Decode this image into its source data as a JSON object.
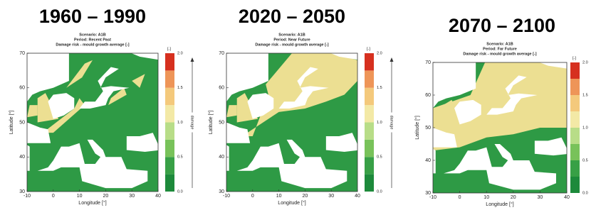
{
  "panels": [
    {
      "title": "1960 – 1990",
      "scenario": "Scenario: A1B",
      "period": "Period: Recent Past",
      "subtitle": "Damage risk - mould growth average [-]",
      "ylabel": "Latitude [°]",
      "xlabel": "Longitude [°]",
      "xticks": [
        "-10",
        "0",
        "10",
        "20",
        "30",
        "40"
      ],
      "yticks": [
        "70",
        "60",
        "50",
        "40",
        "30"
      ],
      "colorbar_unit": "[-]",
      "colorbar_ticks": [
        "2.0",
        "1.5",
        "1.0",
        "0.5",
        "0.0"
      ],
      "arrow_label": "damage"
    },
    {
      "title": "2020 – 2050",
      "scenario": "Scenario: A1B",
      "period": "Period: Near Future",
      "subtitle": "Damage risk - mould growth average [-]",
      "ylabel": "Latitude [°]",
      "xlabel": "Longitude [°]",
      "xticks": [
        "-10",
        "0",
        "10",
        "20",
        "30",
        "40"
      ],
      "yticks": [
        "70",
        "60",
        "50",
        "40",
        "30"
      ],
      "colorbar_unit": "[-]",
      "colorbar_ticks": [
        "2.0",
        "1.5",
        "1.0",
        "0.5",
        "0.0"
      ],
      "arrow_label": "damage"
    },
    {
      "title": "2070 – 2100",
      "scenario": "Scenario: A1B",
      "period": "Period: Far Future",
      "subtitle": "Damage risk - mould growth average [-]",
      "ylabel": "Latitude [°]",
      "xlabel": "Longitude [°]",
      "xticks": [
        "-10",
        "0",
        "10",
        "20",
        "30",
        "40"
      ],
      "yticks": [
        "70",
        "60",
        "50",
        "40",
        "30"
      ],
      "colorbar_unit": "[-]",
      "colorbar_ticks": [
        "2.0",
        "1.5",
        "1.0",
        "0.5",
        "0.0"
      ]
    }
  ]
}
